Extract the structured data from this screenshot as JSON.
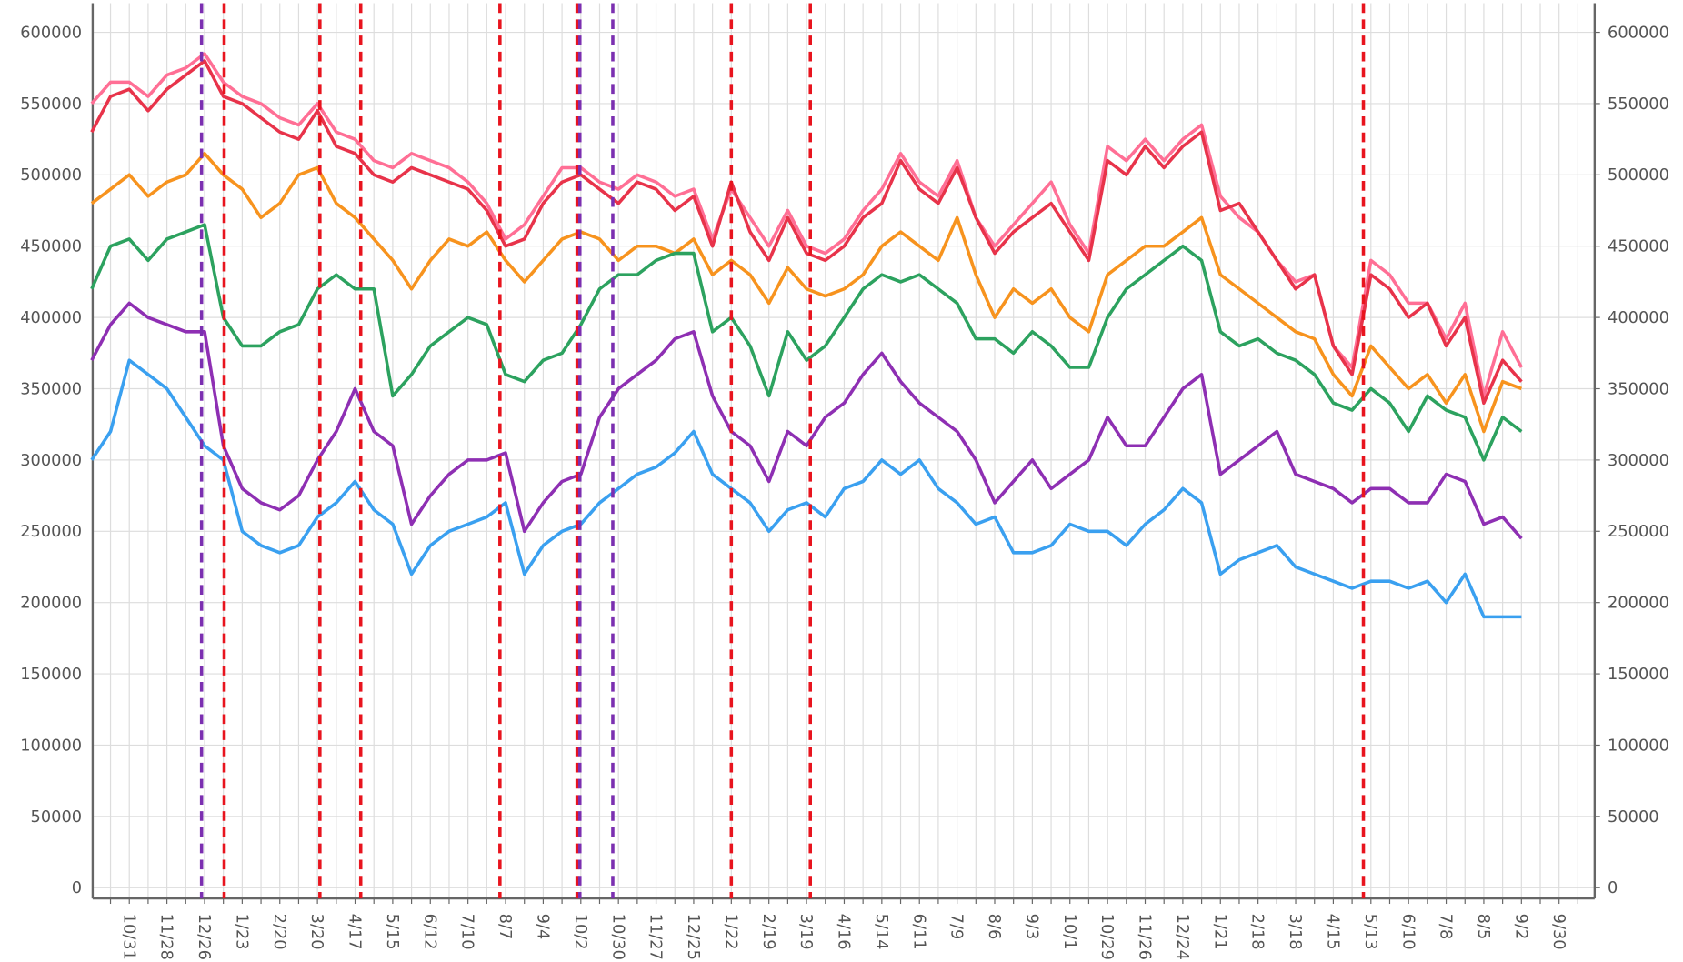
{
  "chart_data": {
    "type": "line",
    "categories": [
      null,
      null,
      "10/31",
      null,
      "11/28",
      null,
      "12/26",
      null,
      "1/23",
      null,
      "2/20",
      null,
      "3/20",
      null,
      "4/17",
      null,
      "5/15",
      null,
      "6/12",
      null,
      "7/10",
      null,
      "8/7",
      null,
      "9/4",
      null,
      "10/2",
      null,
      "10/30",
      null,
      "11/27",
      null,
      "12/25",
      null,
      "1/22",
      null,
      "2/19",
      null,
      "3/19",
      null,
      "4/16",
      null,
      "5/14",
      null,
      "6/11",
      null,
      "7/9",
      null,
      "8/6",
      null,
      "9/3",
      null,
      "10/1",
      null,
      "10/29",
      null,
      "11/26",
      null,
      "12/24",
      null,
      "1/21",
      null,
      "2/18",
      null,
      "3/18",
      null,
      "4/15",
      null,
      "5/13",
      null,
      "6/10",
      null,
      "7/8",
      null,
      "8/5",
      null,
      "9/2",
      null,
      "9/30",
      null
    ],
    "series": [
      {
        "color": "#ff6f95",
        "values": [
          550000,
          565000,
          565000,
          555000,
          570000,
          575000,
          585000,
          565000,
          555000,
          550000,
          540000,
          535000,
          550000,
          530000,
          525000,
          510000,
          505000,
          515000,
          510000,
          505000,
          495000,
          480000,
          455000,
          465000,
          485000,
          505000,
          505000,
          495000,
          490000,
          500000,
          495000,
          485000,
          490000,
          455000,
          490000,
          470000,
          450000,
          475000,
          450000,
          445000,
          455000,
          475000,
          490000,
          515000,
          495000,
          485000,
          510000,
          470000,
          450000,
          465000,
          480000,
          495000,
          465000,
          445000,
          520000,
          510000,
          525000,
          510000,
          525000,
          535000,
          485000,
          470000,
          460000,
          440000,
          425000,
          430000,
          380000,
          365000,
          440000,
          430000,
          410000,
          410000,
          385000,
          410000,
          345000,
          390000,
          365000,
          null,
          null,
          null
        ]
      },
      {
        "color": "#e8334a",
        "values": [
          530000,
          555000,
          560000,
          545000,
          560000,
          570000,
          580000,
          555000,
          550000,
          540000,
          530000,
          525000,
          545000,
          520000,
          515000,
          500000,
          495000,
          505000,
          500000,
          495000,
          490000,
          475000,
          450000,
          455000,
          480000,
          495000,
          500000,
          490000,
          480000,
          495000,
          490000,
          475000,
          485000,
          450000,
          495000,
          460000,
          440000,
          470000,
          445000,
          440000,
          450000,
          470000,
          480000,
          510000,
          490000,
          480000,
          505000,
          470000,
          445000,
          460000,
          470000,
          480000,
          460000,
          440000,
          510000,
          500000,
          520000,
          505000,
          520000,
          530000,
          475000,
          480000,
          460000,
          440000,
          420000,
          430000,
          380000,
          360000,
          430000,
          420000,
          400000,
          410000,
          380000,
          400000,
          340000,
          370000,
          355000,
          null,
          null,
          null
        ]
      },
      {
        "color": "#f7931e",
        "values": [
          480000,
          490000,
          500000,
          485000,
          495000,
          500000,
          515000,
          500000,
          490000,
          470000,
          480000,
          500000,
          505000,
          480000,
          470000,
          455000,
          440000,
          420000,
          440000,
          455000,
          450000,
          460000,
          440000,
          425000,
          440000,
          455000,
          460000,
          455000,
          440000,
          450000,
          450000,
          445000,
          455000,
          430000,
          440000,
          430000,
          410000,
          435000,
          420000,
          415000,
          420000,
          430000,
          450000,
          460000,
          450000,
          440000,
          470000,
          430000,
          400000,
          420000,
          410000,
          420000,
          400000,
          390000,
          430000,
          440000,
          450000,
          450000,
          460000,
          470000,
          430000,
          420000,
          410000,
          400000,
          390000,
          385000,
          360000,
          345000,
          380000,
          365000,
          350000,
          360000,
          340000,
          360000,
          320000,
          355000,
          350000,
          null,
          null,
          null
        ]
      },
      {
        "color": "#2ca25f",
        "values": [
          420000,
          450000,
          455000,
          440000,
          455000,
          460000,
          465000,
          400000,
          380000,
          380000,
          390000,
          395000,
          420000,
          430000,
          420000,
          420000,
          345000,
          360000,
          380000,
          390000,
          400000,
          395000,
          360000,
          355000,
          370000,
          375000,
          395000,
          420000,
          430000,
          430000,
          440000,
          445000,
          445000,
          390000,
          400000,
          380000,
          345000,
          390000,
          370000,
          380000,
          400000,
          420000,
          430000,
          425000,
          430000,
          420000,
          410000,
          385000,
          385000,
          375000,
          390000,
          380000,
          365000,
          365000,
          400000,
          420000,
          430000,
          440000,
          450000,
          440000,
          390000,
          380000,
          385000,
          375000,
          370000,
          360000,
          340000,
          335000,
          350000,
          340000,
          320000,
          345000,
          335000,
          330000,
          300000,
          330000,
          320000,
          null,
          null,
          null
        ]
      },
      {
        "color": "#8e2fb3",
        "values": [
          370000,
          395000,
          410000,
          400000,
          395000,
          390000,
          390000,
          310000,
          280000,
          270000,
          265000,
          275000,
          300000,
          320000,
          350000,
          320000,
          310000,
          255000,
          275000,
          290000,
          300000,
          300000,
          305000,
          250000,
          270000,
          285000,
          290000,
          330000,
          350000,
          360000,
          370000,
          385000,
          390000,
          345000,
          320000,
          310000,
          285000,
          320000,
          310000,
          330000,
          340000,
          360000,
          375000,
          355000,
          340000,
          330000,
          320000,
          300000,
          270000,
          285000,
          300000,
          280000,
          290000,
          300000,
          330000,
          310000,
          310000,
          330000,
          350000,
          360000,
          290000,
          300000,
          310000,
          320000,
          290000,
          285000,
          280000,
          270000,
          280000,
          280000,
          270000,
          270000,
          290000,
          285000,
          255000,
          260000,
          245000,
          null,
          null,
          null
        ]
      },
      {
        "color": "#3aa0f0",
        "values": [
          300000,
          320000,
          370000,
          360000,
          350000,
          330000,
          310000,
          300000,
          250000,
          240000,
          235000,
          240000,
          260000,
          270000,
          285000,
          265000,
          255000,
          220000,
          240000,
          250000,
          255000,
          260000,
          270000,
          220000,
          240000,
          250000,
          255000,
          270000,
          280000,
          290000,
          295000,
          305000,
          320000,
          290000,
          280000,
          270000,
          250000,
          265000,
          270000,
          260000,
          280000,
          285000,
          300000,
          290000,
          300000,
          280000,
          270000,
          255000,
          260000,
          235000,
          235000,
          240000,
          255000,
          250000,
          250000,
          240000,
          255000,
          265000,
          280000,
          270000,
          220000,
          230000,
          235000,
          240000,
          225000,
          220000,
          215000,
          210000,
          215000,
          215000,
          210000,
          215000,
          200000,
          220000,
          190000,
          190000,
          190000,
          null,
          null,
          null
        ]
      }
    ],
    "vlines": [
      {
        "x": 5.84,
        "color": "#7b2fb0"
      },
      {
        "x": 7.04,
        "color": "#e8141e"
      },
      {
        "x": 12.13,
        "color": "#e8141e"
      },
      {
        "x": 14.3,
        "color": "#e8141e"
      },
      {
        "x": 21.7,
        "color": "#e8141e"
      },
      {
        "x": 25.8,
        "color": "#e8141e"
      },
      {
        "x": 25.95,
        "color": "#7b2fb0"
      },
      {
        "x": 27.7,
        "color": "#7b2fb0"
      },
      {
        "x": 34.0,
        "color": "#e8141e"
      },
      {
        "x": 38.2,
        "color": "#e8141e"
      },
      {
        "x": 67.6,
        "color": "#e8141e"
      }
    ],
    "ylim": [
      0,
      600000
    ],
    "yticks": [
      0,
      50000,
      100000,
      150000,
      200000,
      250000,
      300000,
      350000,
      400000,
      450000,
      500000,
      550000,
      600000
    ],
    "y2lim": [
      0,
      600000
    ],
    "y2ticks": [
      0,
      50000,
      100000,
      150000,
      200000,
      250000,
      300000,
      350000,
      400000,
      450000,
      500000,
      550000,
      600000
    ],
    "grid": true
  }
}
